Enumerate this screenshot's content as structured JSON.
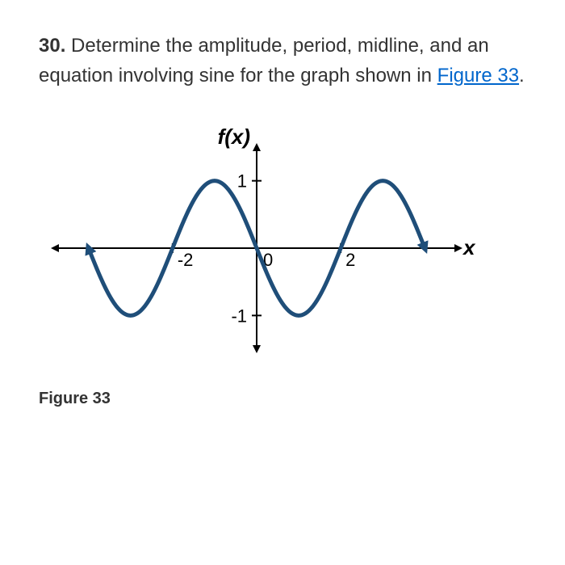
{
  "question": {
    "number": "30.",
    "text_before_link": "Determine the amplitude, period, midline, and an equation involving sine for the graph shown in ",
    "link_text": "Figure 33",
    "text_after_link": "."
  },
  "figure": {
    "caption": "Figure 33",
    "type": "line",
    "y_axis_label": "f(x)",
    "x_axis_label": "x",
    "xlim": [
      -4.8,
      4.8
    ],
    "ylim": [
      -1.5,
      1.5
    ],
    "x_ticks": [
      -2,
      2
    ],
    "x_tick_labels": [
      "-2",
      "2"
    ],
    "y_ticks": [
      -1,
      1
    ],
    "y_tick_labels": [
      "-1",
      "1"
    ],
    "origin_label": "0",
    "axis_color": "#000000",
    "axis_width": 2,
    "tick_fontsize": 22,
    "label_fontsize": 26,
    "background_color": "#ffffff",
    "curve": {
      "type": "sine",
      "amplitude": 1,
      "period": 4,
      "phase_shift": 0,
      "vertical_shift": 0,
      "reflection": true,
      "color": "#1f4e79",
      "width": 5,
      "domain": [
        -4.0,
        4.0
      ]
    }
  }
}
